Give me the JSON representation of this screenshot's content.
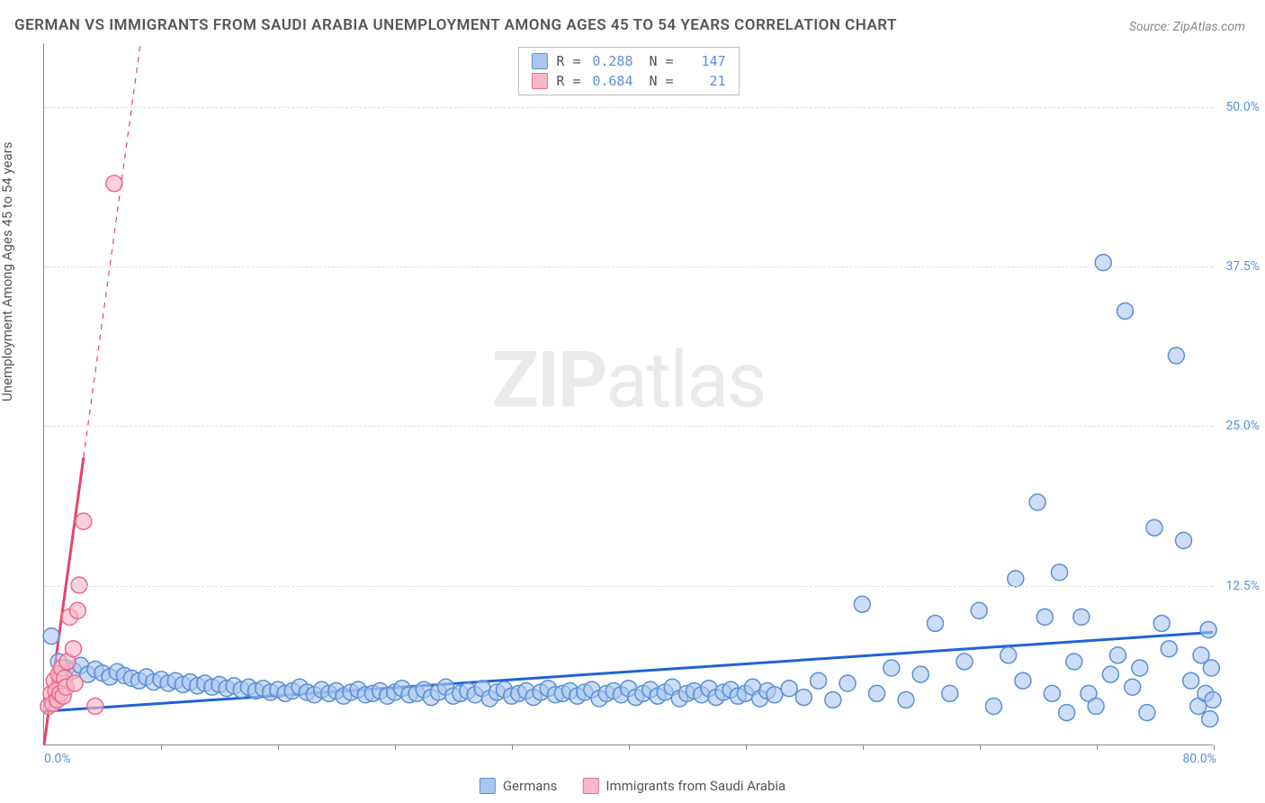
{
  "title": "GERMAN VS IMMIGRANTS FROM SAUDI ARABIA UNEMPLOYMENT AMONG AGES 45 TO 54 YEARS CORRELATION CHART",
  "source": "Source: ZipAtlas.com",
  "watermark_bold": "ZIP",
  "watermark_rest": "atlas",
  "y_axis_label": "Unemployment Among Ages 45 to 54 years",
  "axes": {
    "xlim": [
      0,
      80
    ],
    "ylim": [
      0,
      55
    ],
    "x_origin_label": "0.0%",
    "x_max_label": "80.0%",
    "y_ticks": [
      12.5,
      25.0,
      37.5,
      50.0
    ],
    "y_tick_labels": [
      "12.5%",
      "25.0%",
      "37.5%",
      "50.0%"
    ],
    "x_tick_positions": [
      8,
      16,
      24,
      32,
      40,
      48,
      56,
      64,
      72,
      80
    ],
    "grid_color": "#dddddd",
    "axis_color": "#888888",
    "y_tick_label_color": "#5b8fd6"
  },
  "legend_top": {
    "rows": [
      {
        "swatch_fill": "#aac6ef",
        "swatch_border": "#5b8fd6",
        "r_label": "R =",
        "r_value": "0.288",
        "n_label": "N =",
        "n_value": "147"
      },
      {
        "swatch_fill": "#f7b8c7",
        "swatch_border": "#e86a8a",
        "r_label": "R =",
        "r_value": "0.684",
        "n_label": "N =",
        "n_value": " 21"
      }
    ]
  },
  "legend_bottom": {
    "items": [
      {
        "swatch_fill": "#aac6ef",
        "swatch_border": "#5b8fd6",
        "label": "Germans"
      },
      {
        "swatch_fill": "#f7b8c7",
        "swatch_border": "#e86a8a",
        "label": "Immigrants from Saudi Arabia"
      }
    ]
  },
  "series": {
    "blue": {
      "marker_fill": "#aac6ef",
      "marker_stroke": "#5b8fd6",
      "marker_opacity": 0.6,
      "marker_radius": 9,
      "line_color": "#1f63d6",
      "line_width": 3,
      "trend": {
        "x1": 0,
        "y1": 2.6,
        "x2": 80,
        "y2": 8.8
      },
      "points": [
        [
          0.5,
          8.5
        ],
        [
          1.0,
          6.5
        ],
        [
          1.5,
          6.0
        ],
        [
          2.0,
          5.8
        ],
        [
          2.5,
          6.2
        ],
        [
          3.0,
          5.5
        ],
        [
          3.5,
          5.9
        ],
        [
          4.0,
          5.6
        ],
        [
          4.5,
          5.3
        ],
        [
          5.0,
          5.7
        ],
        [
          5.5,
          5.4
        ],
        [
          6.0,
          5.2
        ],
        [
          6.5,
          5.0
        ],
        [
          7.0,
          5.3
        ],
        [
          7.5,
          4.9
        ],
        [
          8.0,
          5.1
        ],
        [
          8.5,
          4.8
        ],
        [
          9.0,
          5.0
        ],
        [
          9.5,
          4.7
        ],
        [
          10.0,
          4.9
        ],
        [
          10.5,
          4.6
        ],
        [
          11.0,
          4.8
        ],
        [
          11.5,
          4.5
        ],
        [
          12.0,
          4.7
        ],
        [
          12.5,
          4.4
        ],
        [
          13.0,
          4.6
        ],
        [
          13.5,
          4.3
        ],
        [
          14.0,
          4.5
        ],
        [
          14.5,
          4.2
        ],
        [
          15.0,
          4.4
        ],
        [
          15.5,
          4.1
        ],
        [
          16.0,
          4.3
        ],
        [
          16.5,
          4.0
        ],
        [
          17.0,
          4.2
        ],
        [
          17.5,
          4.5
        ],
        [
          18.0,
          4.1
        ],
        [
          18.5,
          3.9
        ],
        [
          19.0,
          4.3
        ],
        [
          19.5,
          4.0
        ],
        [
          20.0,
          4.2
        ],
        [
          20.5,
          3.8
        ],
        [
          21.0,
          4.1
        ],
        [
          21.5,
          4.3
        ],
        [
          22.0,
          3.9
        ],
        [
          22.5,
          4.0
        ],
        [
          23.0,
          4.2
        ],
        [
          23.5,
          3.8
        ],
        [
          24.0,
          4.1
        ],
        [
          24.5,
          4.4
        ],
        [
          25.0,
          3.9
        ],
        [
          25.5,
          4.0
        ],
        [
          26.0,
          4.3
        ],
        [
          26.5,
          3.7
        ],
        [
          27.0,
          4.1
        ],
        [
          27.5,
          4.5
        ],
        [
          28.0,
          3.8
        ],
        [
          28.5,
          4.0
        ],
        [
          29.0,
          4.2
        ],
        [
          29.5,
          3.9
        ],
        [
          30.0,
          4.4
        ],
        [
          30.5,
          3.6
        ],
        [
          31.0,
          4.1
        ],
        [
          31.5,
          4.3
        ],
        [
          32.0,
          3.8
        ],
        [
          32.5,
          4.0
        ],
        [
          33.0,
          4.2
        ],
        [
          33.5,
          3.7
        ],
        [
          34.0,
          4.1
        ],
        [
          34.5,
          4.4
        ],
        [
          35.0,
          3.9
        ],
        [
          35.5,
          4.0
        ],
        [
          36.0,
          4.2
        ],
        [
          36.5,
          3.8
        ],
        [
          37.0,
          4.1
        ],
        [
          37.5,
          4.3
        ],
        [
          38.0,
          3.6
        ],
        [
          38.5,
          4.0
        ],
        [
          39.0,
          4.2
        ],
        [
          39.5,
          3.9
        ],
        [
          40.0,
          4.4
        ],
        [
          40.5,
          3.7
        ],
        [
          41.0,
          4.0
        ],
        [
          41.5,
          4.3
        ],
        [
          42.0,
          3.8
        ],
        [
          42.5,
          4.1
        ],
        [
          43.0,
          4.5
        ],
        [
          43.5,
          3.6
        ],
        [
          44.0,
          4.0
        ],
        [
          44.5,
          4.2
        ],
        [
          45.0,
          3.9
        ],
        [
          45.5,
          4.4
        ],
        [
          46.0,
          3.7
        ],
        [
          46.5,
          4.1
        ],
        [
          47.0,
          4.3
        ],
        [
          47.5,
          3.8
        ],
        [
          48.0,
          4.0
        ],
        [
          48.5,
          4.5
        ],
        [
          49.0,
          3.6
        ],
        [
          49.5,
          4.2
        ],
        [
          50.0,
          3.9
        ],
        [
          51.0,
          4.4
        ],
        [
          52.0,
          3.7
        ],
        [
          53.0,
          5.0
        ],
        [
          54.0,
          3.5
        ],
        [
          55.0,
          4.8
        ],
        [
          56.0,
          11.0
        ],
        [
          57.0,
          4.0
        ],
        [
          58.0,
          6.0
        ],
        [
          59.0,
          3.5
        ],
        [
          60.0,
          5.5
        ],
        [
          61.0,
          9.5
        ],
        [
          62.0,
          4.0
        ],
        [
          63.0,
          6.5
        ],
        [
          64.0,
          10.5
        ],
        [
          65.0,
          3.0
        ],
        [
          66.0,
          7.0
        ],
        [
          66.5,
          13.0
        ],
        [
          67.0,
          5.0
        ],
        [
          68.0,
          19.0
        ],
        [
          68.5,
          10.0
        ],
        [
          69.0,
          4.0
        ],
        [
          69.5,
          13.5
        ],
        [
          70.0,
          2.5
        ],
        [
          70.5,
          6.5
        ],
        [
          71.0,
          10.0
        ],
        [
          71.5,
          4.0
        ],
        [
          72.0,
          3.0
        ],
        [
          72.5,
          37.8
        ],
        [
          73.0,
          5.5
        ],
        [
          73.5,
          7.0
        ],
        [
          74.0,
          34.0
        ],
        [
          74.5,
          4.5
        ],
        [
          75.0,
          6.0
        ],
        [
          75.5,
          2.5
        ],
        [
          76.0,
          17.0
        ],
        [
          76.5,
          9.5
        ],
        [
          77.0,
          7.5
        ],
        [
          77.5,
          30.5
        ],
        [
          78.0,
          16.0
        ],
        [
          78.5,
          5.0
        ],
        [
          79.0,
          3.0
        ],
        [
          79.2,
          7.0
        ],
        [
          79.5,
          4.0
        ],
        [
          79.7,
          9.0
        ],
        [
          79.8,
          2.0
        ],
        [
          79.9,
          6.0
        ],
        [
          80.0,
          3.5
        ]
      ]
    },
    "pink": {
      "marker_fill": "#f7b8c7",
      "marker_stroke": "#e86a8a",
      "marker_opacity": 0.65,
      "marker_radius": 9,
      "line_color": "#e8416a",
      "line_width": 3,
      "trend_solid": {
        "x1": 0,
        "y1": 0,
        "x2": 2.7,
        "y2": 22.5
      },
      "trend_dashed": {
        "x1": 2.7,
        "y1": 22.5,
        "x2": 6.6,
        "y2": 55
      },
      "points": [
        [
          0.3,
          3.0
        ],
        [
          0.5,
          4.0
        ],
        [
          0.6,
          3.2
        ],
        [
          0.7,
          5.0
        ],
        [
          0.8,
          4.2
        ],
        [
          0.9,
          3.5
        ],
        [
          1.0,
          5.5
        ],
        [
          1.1,
          4.0
        ],
        [
          1.2,
          6.0
        ],
        [
          1.3,
          3.8
        ],
        [
          1.4,
          5.2
        ],
        [
          1.5,
          4.5
        ],
        [
          1.6,
          6.5
        ],
        [
          1.75,
          10.0
        ],
        [
          2.0,
          7.5
        ],
        [
          2.1,
          4.8
        ],
        [
          2.3,
          10.5
        ],
        [
          2.4,
          12.5
        ],
        [
          2.7,
          17.5
        ],
        [
          3.5,
          3.0
        ],
        [
          4.8,
          44.0
        ]
      ]
    }
  }
}
